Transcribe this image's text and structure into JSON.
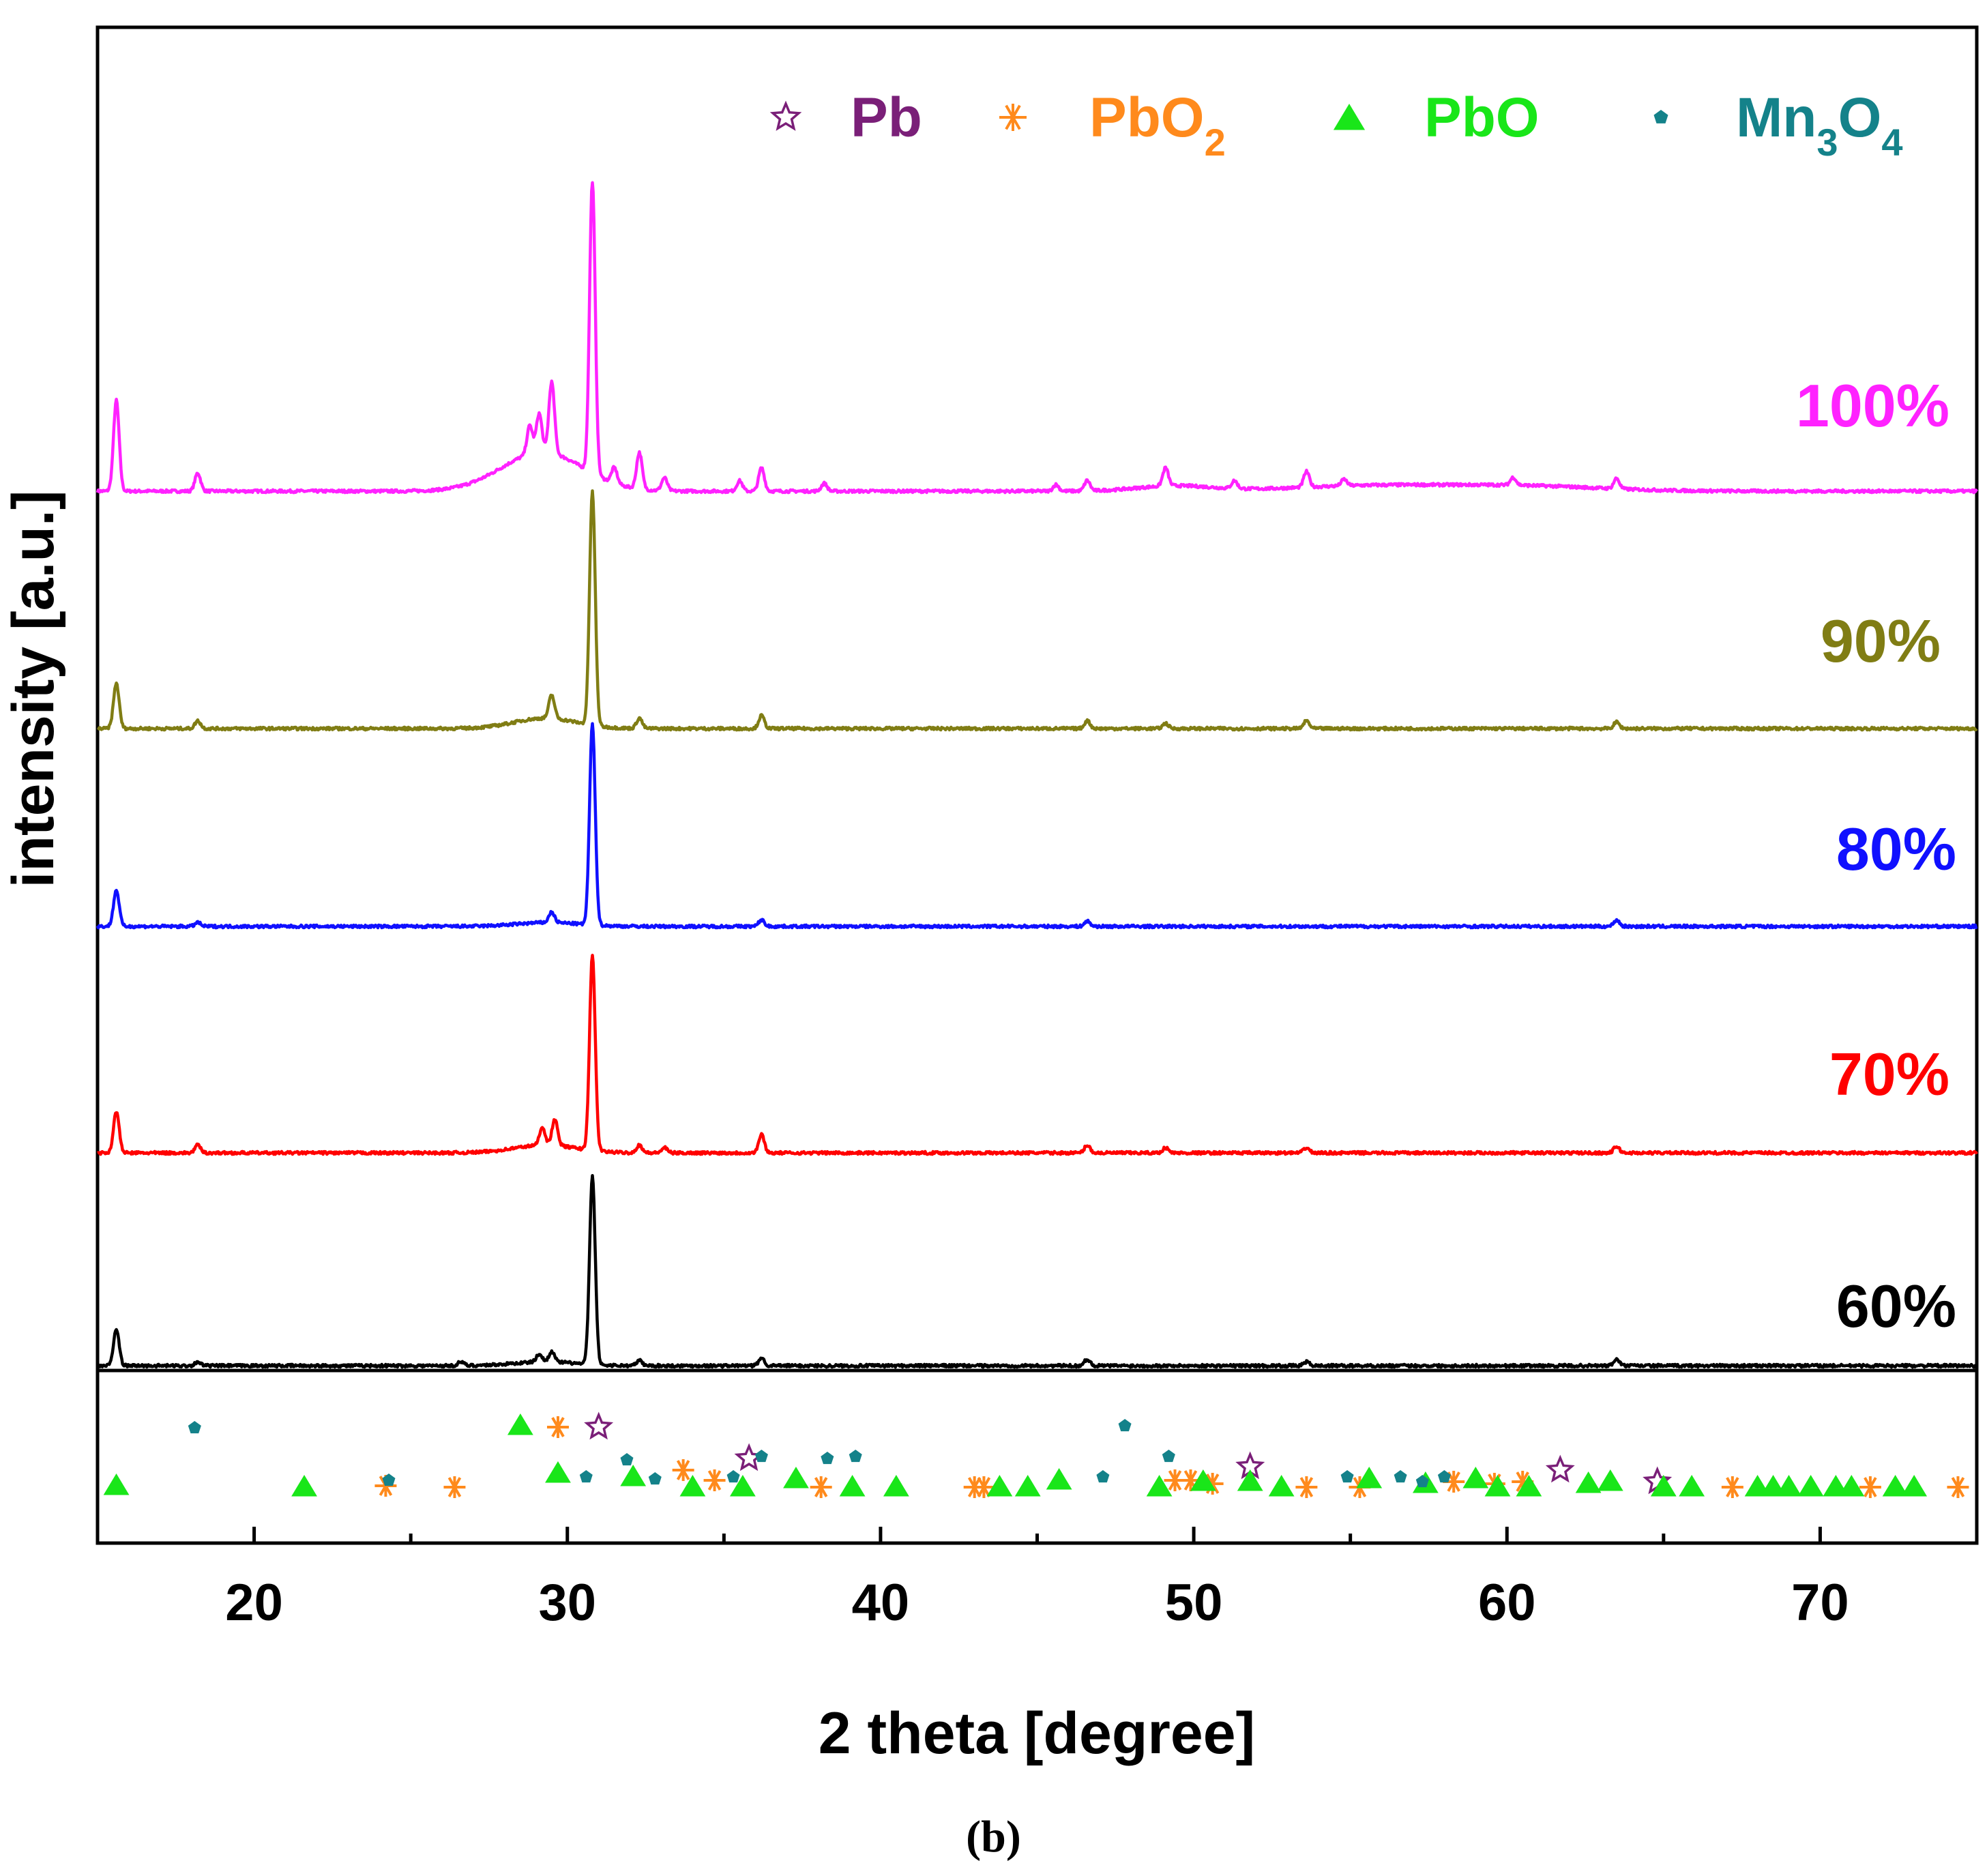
{
  "caption": "(b)",
  "chart_data": {
    "type": "line",
    "xlabel": "2 theta [degree]",
    "ylabel": "intensity [a.u.]",
    "xlim": [
      15,
      75
    ],
    "xticks": [
      20,
      30,
      40,
      50,
      60,
      70
    ],
    "legend_position": "top-right",
    "legend": [
      {
        "name": "Pb",
        "sub": "",
        "marker": "star",
        "color": "#7a1f78"
      },
      {
        "name": "PbO",
        "sub": "2",
        "marker": "asterisk",
        "color": "#ff8a1c"
      },
      {
        "name": "PbO",
        "sub": "",
        "marker": "triangle",
        "color": "#19e619"
      },
      {
        "name": "Mn",
        "sub": "3",
        "name2": "O",
        "sub2": "4",
        "marker": "pentagon",
        "color": "#14828a"
      }
    ],
    "series": [
      {
        "name": "100%",
        "color": "#ff22ff",
        "peaks": [
          [
            15.6,
            70
          ],
          [
            18.2,
            14
          ],
          [
            28.8,
            22
          ],
          [
            29.1,
            30
          ],
          [
            29.5,
            55
          ],
          [
            30.8,
            225
          ],
          [
            31.5,
            12
          ],
          [
            32.3,
            28
          ],
          [
            33.1,
            10
          ],
          [
            35.5,
            8
          ],
          [
            36.2,
            18
          ],
          [
            38.2,
            6
          ],
          [
            45.6,
            5
          ],
          [
            46.6,
            8
          ],
          [
            49.1,
            14
          ],
          [
            51.3,
            6
          ],
          [
            53.6,
            12
          ],
          [
            54.8,
            5
          ],
          [
            60.2,
            6
          ],
          [
            63.5,
            8
          ]
        ],
        "humps": [
          [
            29.2,
            1.3,
            30
          ],
          [
            49.4,
            1.2,
            4
          ],
          [
            55.5,
            2.5,
            4
          ],
          [
            60.4,
            2.5,
            4
          ]
        ]
      },
      {
        "name": "90%",
        "color": "#807d14",
        "peaks": [
          [
            15.6,
            35
          ],
          [
            18.2,
            6
          ],
          [
            29.5,
            18
          ],
          [
            30.8,
            180
          ],
          [
            32.3,
            8
          ],
          [
            36.2,
            10
          ],
          [
            46.6,
            6
          ],
          [
            49.1,
            4
          ],
          [
            53.6,
            6
          ],
          [
            63.5,
            5
          ]
        ],
        "humps": [
          [
            29.3,
            1.0,
            8
          ]
        ]
      },
      {
        "name": "80%",
        "color": "#1010ff",
        "peaks": [
          [
            15.6,
            28
          ],
          [
            18.2,
            3
          ],
          [
            29.5,
            8
          ],
          [
            30.8,
            155
          ],
          [
            36.2,
            5
          ],
          [
            46.6,
            4
          ],
          [
            63.5,
            5
          ]
        ],
        "humps": [
          [
            29.4,
            1.0,
            3
          ]
        ]
      },
      {
        "name": "70%",
        "color": "#ff0000",
        "peaks": [
          [
            15.6,
            32
          ],
          [
            18.2,
            6
          ],
          [
            29.2,
            14
          ],
          [
            29.6,
            20
          ],
          [
            30.8,
            150
          ],
          [
            32.3,
            6
          ],
          [
            33.1,
            4
          ],
          [
            36.2,
            14
          ],
          [
            46.6,
            6
          ],
          [
            49.1,
            4
          ],
          [
            53.6,
            4
          ],
          [
            63.5,
            5
          ]
        ],
        "humps": [
          [
            29.3,
            1.0,
            6
          ]
        ]
      },
      {
        "name": "60%",
        "color": "#000000",
        "peaks": [
          [
            15.6,
            28
          ],
          [
            18.2,
            3
          ],
          [
            26.6,
            3
          ],
          [
            29.1,
            6
          ],
          [
            29.5,
            8
          ],
          [
            30.8,
            145
          ],
          [
            32.3,
            4
          ],
          [
            36.2,
            6
          ],
          [
            46.6,
            5
          ],
          [
            53.6,
            3
          ],
          [
            63.5,
            5
          ]
        ],
        "humps": [
          [
            29.3,
            1.0,
            3
          ]
        ]
      }
    ],
    "reference_markers": {
      "Pb": [
        31.0,
        35.8,
        51.8,
        61.7,
        64.8
      ],
      "PbO2": [
        24.2,
        26.4,
        29.7,
        33.7,
        34.7,
        38.1,
        43.0,
        43.3,
        49.4,
        49.9,
        50.6,
        53.6,
        55.3,
        58.3,
        59.6,
        60.5,
        67.2,
        71.6,
        74.4
      ],
      "PbO": [
        15.6,
        21.6,
        28.5,
        29.7,
        32.1,
        34.0,
        35.6,
        37.3,
        39.1,
        40.5,
        43.8,
        44.7,
        45.7,
        48.9,
        50.3,
        51.8,
        52.8,
        55.6,
        57.4,
        59.0,
        59.7,
        60.7,
        62.6,
        63.3,
        65.0,
        65.9,
        68.0,
        68.5,
        69.0,
        69.7,
        70.5,
        71.0,
        72.4,
        73.0
      ],
      "Mn3O4": [
        18.1,
        24.3,
        30.6,
        31.9,
        32.8,
        35.3,
        36.2,
        38.3,
        39.2,
        47.1,
        47.8,
        49.2,
        54.9,
        56.6,
        57.3,
        58.0
      ]
    }
  }
}
